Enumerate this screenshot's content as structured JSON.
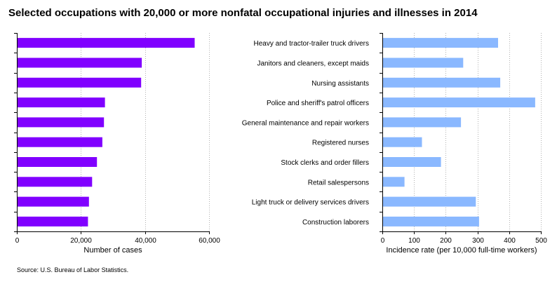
{
  "title": "Selected occupations with 20,000 or more nonfatal occupational injuries and illnesses in 2014",
  "source": "Source: U.S. Bureau of Labor Statistics.",
  "colors": {
    "left_bars": "#8000ff",
    "right_bars": "#8ab8ff",
    "grid": "#b0b0b0",
    "axis": "#000000"
  },
  "chart_data": [
    {
      "type": "bar",
      "orientation": "horizontal",
      "categories": [
        "Heavy and tractor-trailer truck drivers",
        "Janitors and cleaners, except maids",
        "Nursing assistants",
        "Police and sheriff's patrol officers",
        "General maintenance and repair workers",
        "Registered nurses",
        "Stock clerks and order fillers",
        "Retail salespersons",
        "Light truck or delivery services drivers",
        "Construction laborers"
      ],
      "values": [
        55500,
        39000,
        38800,
        27500,
        27200,
        26700,
        25000,
        23500,
        22500,
        22200
      ],
      "xlabel": "Number of cases",
      "xlim": [
        0,
        60000
      ],
      "ticks": [
        0,
        20000,
        40000,
        60000
      ],
      "tick_labels": [
        "0",
        "20,000",
        "40,000",
        "60,000"
      ],
      "grid": true
    },
    {
      "type": "bar",
      "orientation": "horizontal",
      "categories": [
        "Heavy and tractor-trailer truck drivers",
        "Janitors and cleaners, except maids",
        "Nursing assistants",
        "Police and sheriff's patrol officers",
        "General maintenance and repair workers",
        "Registered nurses",
        "Stock clerks and order fillers",
        "Retail salespersons",
        "Light truck or delivery services drivers",
        "Construction laborers"
      ],
      "values": [
        365,
        255,
        372,
        482,
        248,
        125,
        185,
        70,
        295,
        305
      ],
      "xlabel": "Incidence rate (per 10,000 full-time workers)",
      "xlim": [
        0,
        500
      ],
      "ticks": [
        0,
        100,
        200,
        300,
        400,
        500
      ],
      "tick_labels": [
        "0",
        "100",
        "200",
        "300",
        "400",
        "500"
      ],
      "grid": true
    }
  ]
}
